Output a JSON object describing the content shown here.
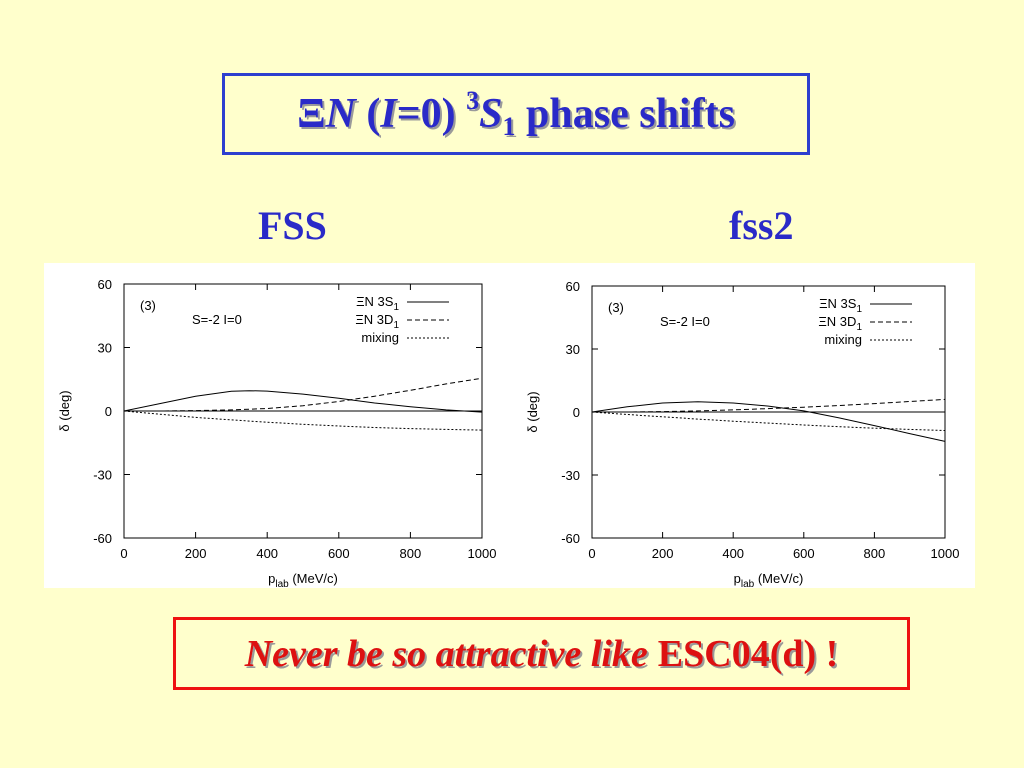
{
  "slide": {
    "title": {
      "prefix": "Ξ",
      "n": "N",
      "paren_open": " (",
      "i": "I",
      "iso": "=0) ",
      "sup": "3",
      "s": "S",
      "sub": "1",
      "suffix": " phase shifts"
    },
    "left_label": "FSS",
    "right_label": "fss2",
    "note_italic": "Never be so attractive like",
    "note_bold": "ESC04(d) !"
  },
  "colors": {
    "title": "#2a2ac8",
    "note": "#dd1111",
    "background": "#ffffcc"
  },
  "chart_data": [
    {
      "type": "line",
      "panel_tag": "(3)",
      "annotation": "S=-2  I=0",
      "ylabel": "δ (deg)",
      "xlabel": {
        "main": "p",
        "sub": "lab",
        "unit": " (MeV/c)"
      },
      "xlim": [
        0,
        1000
      ],
      "ylim": [
        -60,
        60
      ],
      "xticks": [
        0,
        200,
        400,
        600,
        800,
        1000
      ],
      "yticks": [
        60,
        30,
        0,
        -30,
        -60
      ],
      "legend_position": "top-right",
      "series": [
        {
          "name": "ΞN 3S",
          "name_sub": "1",
          "style": "solid",
          "x": [
            0,
            100,
            200,
            300,
            350,
            400,
            500,
            600,
            700,
            800,
            900,
            1000
          ],
          "y": [
            0,
            3.5,
            7,
            9.3,
            9.6,
            9.4,
            8,
            6,
            3.8,
            2,
            0.5,
            -0.5
          ]
        },
        {
          "name": "ΞN 3D",
          "name_sub": "1",
          "style": "dashed",
          "x": [
            0,
            100,
            200,
            300,
            400,
            500,
            600,
            700,
            800,
            900,
            1000
          ],
          "y": [
            0,
            0,
            0.2,
            0.5,
            1.2,
            2.5,
            4.5,
            7,
            9.8,
            12.8,
            15.5
          ]
        },
        {
          "name": "mixing",
          "style": "dotted",
          "x": [
            0,
            100,
            200,
            300,
            400,
            500,
            600,
            700,
            800,
            900,
            1000
          ],
          "y": [
            0,
            -1.5,
            -3,
            -4.2,
            -5.3,
            -6.3,
            -7.1,
            -7.8,
            -8.3,
            -8.7,
            -9
          ]
        }
      ]
    },
    {
      "type": "line",
      "panel_tag": "(3)",
      "annotation": "S=-2  I=0",
      "ylabel": "δ (deg)",
      "xlabel": {
        "main": "p",
        "sub": "lab",
        "unit": " (MeV/c)"
      },
      "xlim": [
        0,
        1000
      ],
      "ylim": [
        -60,
        60
      ],
      "xticks": [
        0,
        200,
        400,
        600,
        800,
        1000
      ],
      "yticks": [
        60,
        30,
        0,
        -30,
        -60
      ],
      "legend_position": "top-right",
      "series": [
        {
          "name": "ΞN 3S",
          "name_sub": "1",
          "style": "solid",
          "x": [
            0,
            100,
            200,
            300,
            400,
            500,
            600,
            700,
            800,
            900,
            1000
          ],
          "y": [
            0,
            2.5,
            4.3,
            4.9,
            4.3,
            2.8,
            0.5,
            -2.8,
            -6.5,
            -10.3,
            -14
          ]
        },
        {
          "name": "ΞN 3D",
          "name_sub": "1",
          "style": "dashed",
          "x": [
            0,
            100,
            200,
            300,
            400,
            500,
            600,
            700,
            800,
            900,
            1000
          ],
          "y": [
            0,
            0,
            0.2,
            0.5,
            1,
            1.6,
            2.3,
            3.1,
            4,
            5,
            6
          ]
        },
        {
          "name": "mixing",
          "style": "dotted",
          "x": [
            0,
            100,
            200,
            300,
            400,
            500,
            600,
            700,
            800,
            900,
            1000
          ],
          "y": [
            0,
            -1.2,
            -2.3,
            -3.4,
            -4.4,
            -5.3,
            -6.2,
            -7,
            -7.7,
            -8.3,
            -8.8
          ]
        }
      ]
    }
  ]
}
